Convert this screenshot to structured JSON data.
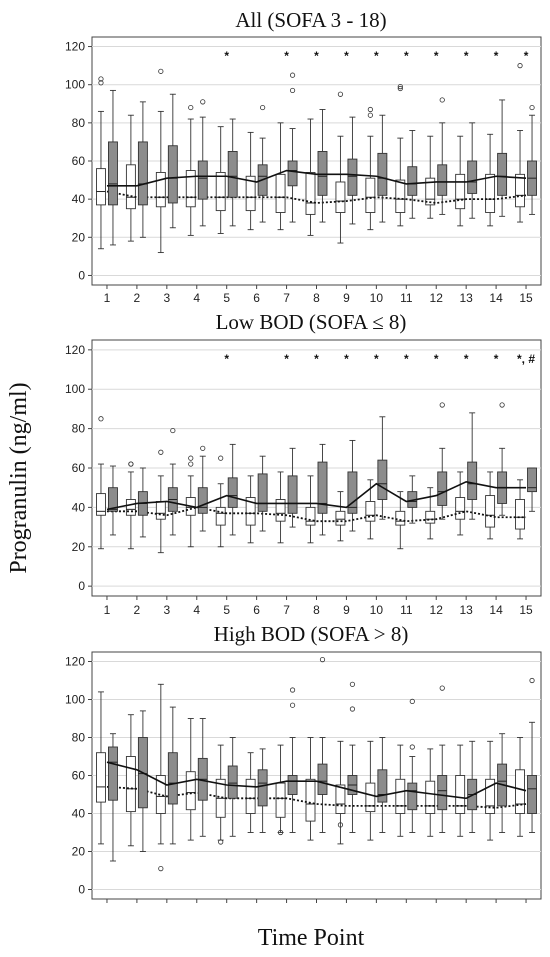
{
  "figure": {
    "ylabel": "Progranulin (ng/ml)",
    "xlabel": "Time Point",
    "colors": {
      "group_a": "#ffffff",
      "group_b": "#8c8c8c",
      "stroke": "#333333",
      "grid": "#d9d9d9"
    }
  },
  "chart_data": [
    {
      "type": "box",
      "title": "All (SOFA 3 - 18)",
      "categories": [
        "1",
        "2",
        "3",
        "4",
        "5",
        "6",
        "7",
        "8",
        "9",
        "10",
        "11",
        "12",
        "13",
        "14",
        "15"
      ],
      "ylim": [
        -5,
        125
      ],
      "yticks": [
        0,
        20,
        40,
        60,
        80,
        100,
        120
      ],
      "grid": true,
      "significance": [
        "",
        "",
        "",
        "",
        "*",
        "",
        "*",
        "*",
        "*",
        "*",
        "*",
        "*",
        "*",
        "*",
        "*"
      ],
      "series": [
        {
          "boxes": [
            [
              14,
              37,
              44,
              56,
              86
            ],
            [
              18,
              35,
              41,
              58,
              84
            ],
            [
              12,
              36,
              41,
              54,
              86
            ],
            [
              21,
              36,
              41,
              55,
              82
            ],
            [
              22,
              34,
              41,
              54,
              78
            ],
            [
              24,
              34,
              41,
              52,
              75
            ],
            [
              24,
              33,
              41,
              53,
              80
            ],
            [
              21,
              32,
              38,
              54,
              82
            ],
            [
              17,
              33,
              39,
              49,
              73
            ],
            [
              24,
              33,
              41,
              51,
              73
            ],
            [
              26,
              33,
              40,
              50,
              72
            ],
            [
              30,
              37,
              40,
              51,
              73
            ],
            [
              26,
              35,
              40,
              53,
              73
            ],
            [
              26,
              33,
              40,
              53,
              74
            ],
            [
              28,
              36,
              42,
              53,
              76
            ]
          ],
          "line": [
            44,
            41,
            41,
            41,
            41,
            41,
            41,
            38,
            39,
            41,
            40,
            38,
            40,
            40,
            42
          ],
          "outliers": [
            [
              103,
              101
            ],
            [],
            [
              107
            ],
            [
              88
            ],
            [],
            [],
            [],
            [],
            [
              95
            ],
            [
              87,
              84
            ],
            [
              99,
              98
            ],
            [],
            [],
            [],
            [
              110
            ]
          ]
        },
        {
          "boxes": [
            [
              16,
              37,
              48,
              70,
              97
            ],
            [
              20,
              37,
              48,
              70,
              91
            ],
            [
              25,
              38,
              51,
              68,
              95
            ],
            [
              26,
              40,
              51,
              60,
              83
            ],
            [
              26,
              41,
              52,
              65,
              82
            ],
            [
              28,
              42,
              52,
              58,
              72
            ],
            [
              28,
              47,
              55,
              60,
              77
            ],
            [
              28,
              42,
              52,
              65,
              87
            ],
            [
              27,
              42,
              52,
              61,
              83
            ],
            [
              28,
              42,
              51,
              64,
              84
            ],
            [
              30,
              42,
              48,
              57,
              76
            ],
            [
              32,
              42,
              49,
              58,
              80
            ],
            [
              30,
              43,
              49,
              60,
              80
            ],
            [
              31,
              42,
              52,
              64,
              92
            ],
            [
              32,
              42,
              51,
              60,
              84
            ]
          ],
          "line": [
            47,
            47,
            51,
            52,
            52,
            49,
            55,
            53,
            53,
            52,
            48,
            49,
            49,
            52,
            51
          ],
          "outliers": [
            [],
            [],
            [],
            [
              91
            ],
            [],
            [
              88
            ],
            [
              105,
              97
            ],
            [],
            [],
            [],
            [],
            [
              92
            ],
            [],
            [],
            [
              88
            ]
          ]
        }
      ]
    },
    {
      "type": "box",
      "title": "Low BOD (SOFA ≤ 8)",
      "categories": [
        "1",
        "2",
        "3",
        "4",
        "5",
        "6",
        "7",
        "8",
        "9",
        "10",
        "11",
        "12",
        "13",
        "14",
        "15"
      ],
      "ylim": [
        -5,
        125
      ],
      "yticks": [
        0,
        20,
        40,
        60,
        80,
        100,
        120
      ],
      "grid": true,
      "significance": [
        "",
        "",
        "",
        "",
        "*",
        "",
        "*",
        "*",
        "*",
        "*",
        "*",
        "*",
        "*",
        "*",
        "*, #"
      ],
      "series": [
        {
          "boxes": [
            [
              19,
              36,
              38,
              47,
              62
            ],
            [
              19,
              36,
              39,
              44,
              58
            ],
            [
              17,
              34,
              37,
              43,
              56
            ],
            [
              20,
              36,
              40,
              45,
              56
            ],
            [
              20,
              31,
              37,
              40,
              52
            ],
            [
              22,
              31,
              37,
              45,
              56
            ],
            [
              22,
              33,
              37,
              44,
              58
            ],
            [
              22,
              31,
              33,
              40,
              56
            ],
            [
              23,
              31,
              34,
              38,
              48
            ],
            [
              24,
              33,
              36,
              43,
              54
            ],
            [
              19,
              31,
              33,
              38,
              48
            ],
            [
              24,
              32,
              34,
              38,
              50
            ],
            [
              26,
              34,
              38,
              45,
              58
            ],
            [
              24,
              30,
              36,
              46,
              58
            ],
            [
              24,
              29,
              35,
              44,
              54
            ]
          ],
          "line": [
            38,
            38,
            36,
            40,
            37,
            37,
            36,
            33,
            33,
            36,
            33,
            34,
            38,
            35,
            35
          ],
          "outliers": [
            [
              85
            ],
            [
              62,
              62
            ],
            [
              68
            ],
            [
              65,
              62
            ],
            [
              65
            ],
            [],
            [],
            [],
            [],
            [],
            [],
            [],
            [],
            [],
            []
          ]
        },
        {
          "boxes": [
            [
              26,
              38,
              39,
              50,
              61
            ],
            [
              25,
              36,
              42,
              48,
              60
            ],
            [
              26,
              38,
              44,
              50,
              62
            ],
            [
              28,
              37,
              40,
              50,
              66
            ],
            [
              26,
              40,
              46,
              55,
              72
            ],
            [
              28,
              38,
              42,
              57,
              66
            ],
            [
              30,
              37,
              42,
              56,
              70
            ],
            [
              26,
              37,
              42,
              63,
              72
            ],
            [
              28,
              37,
              40,
              58,
              74
            ],
            [
              34,
              44,
              52,
              64,
              86
            ],
            [
              32,
              40,
              43,
              48,
              56
            ],
            [
              34,
              41,
              48,
              58,
              70
            ],
            [
              34,
              44,
              52,
              63,
              88
            ],
            [
              36,
              42,
              50,
              58,
              70
            ],
            [
              38,
              48,
              50,
              60,
              60
            ]
          ],
          "line": [
            39,
            42,
            43,
            40,
            46,
            42,
            42,
            42,
            40,
            52,
            43,
            46,
            53,
            50,
            50
          ],
          "outliers": [
            [],
            [],
            [
              79
            ],
            [
              70
            ],
            [],
            [],
            [],
            [],
            [],
            [],
            [],
            [
              92
            ],
            [],
            [
              92
            ],
            []
          ]
        }
      ]
    },
    {
      "type": "box",
      "title": "High BOD (SOFA > 8)",
      "categories": [
        "1",
        "2",
        "3",
        "4",
        "5",
        "6",
        "7",
        "8",
        "9",
        "10",
        "11",
        "12",
        "13",
        "14",
        "15"
      ],
      "ylim": [
        -5,
        125
      ],
      "yticks": [
        0,
        20,
        40,
        60,
        80,
        100,
        120
      ],
      "grid": true,
      "significance": [
        "",
        "",
        "",
        "",
        "",
        "",
        "",
        "",
        "",
        "",
        "",
        "",
        "",
        "",
        ""
      ],
      "series": [
        {
          "boxes": [
            [
              24,
              46,
              54,
              72,
              104
            ],
            [
              23,
              41,
              53,
              70,
              92
            ],
            [
              24,
              40,
              49,
              60,
              108
            ],
            [
              26,
              42,
              51,
              62,
              90
            ],
            [
              26,
              38,
              48,
              58,
              76
            ],
            [
              30,
              40,
              48,
              58,
              72
            ],
            [
              30,
              38,
              48,
              56,
              76
            ],
            [
              26,
              36,
              45,
              58,
              80
            ],
            [
              24,
              40,
              45,
              55,
              78
            ],
            [
              26,
              41,
              44,
              56,
              78
            ],
            [
              28,
              40,
              44,
              58,
              76
            ],
            [
              28,
              40,
              44,
              57,
              74
            ],
            [
              28,
              40,
              44,
              60,
              76
            ],
            [
              26,
              40,
              44,
              58,
              78
            ],
            [
              28,
              40,
              45,
              63,
              80
            ]
          ],
          "line": [
            54,
            53,
            49,
            51,
            48,
            48,
            48,
            45,
            44,
            44,
            44,
            44,
            44,
            43,
            45
          ],
          "outliers": [
            [],
            [],
            [
              11
            ],
            [],
            [
              25
            ],
            [],
            [
              30
            ],
            [],
            [
              34
            ],
            [],
            [],
            [],
            [],
            [],
            []
          ]
        },
        {
          "boxes": [
            [
              15,
              47,
              67,
              75,
              82
            ],
            [
              20,
              43,
              61,
              80,
              94
            ],
            [
              24,
              45,
              56,
              72,
              96
            ],
            [
              28,
              47,
              58,
              69,
              90
            ],
            [
              28,
              48,
              56,
              65,
              80
            ],
            [
              30,
              44,
              56,
              63,
              74
            ],
            [
              30,
              50,
              57,
              60,
              80
            ],
            [
              30,
              50,
              57,
              66,
              80
            ],
            [
              30,
              50,
              55,
              60,
              76
            ],
            [
              30,
              46,
              50,
              63,
              80
            ],
            [
              30,
              42,
              52,
              56,
              70
            ],
            [
              30,
              42,
              52,
              60,
              76
            ],
            [
              30,
              42,
              50,
              58,
              78
            ],
            [
              30,
              44,
              57,
              66,
              82
            ],
            [
              30,
              40,
              53,
              60,
              88
            ]
          ],
          "line": [
            67,
            63,
            55,
            58,
            55,
            54,
            57,
            57,
            53,
            49,
            52,
            50,
            48,
            56,
            52
          ],
          "outliers": [
            [],
            [],
            [],
            [],
            [],
            [],
            [
              105,
              97
            ],
            [
              121
            ],
            [
              108,
              95
            ],
            [],
            [
              99,
              75
            ],
            [
              106
            ],
            [],
            [],
            [
              110
            ]
          ]
        }
      ]
    }
  ]
}
